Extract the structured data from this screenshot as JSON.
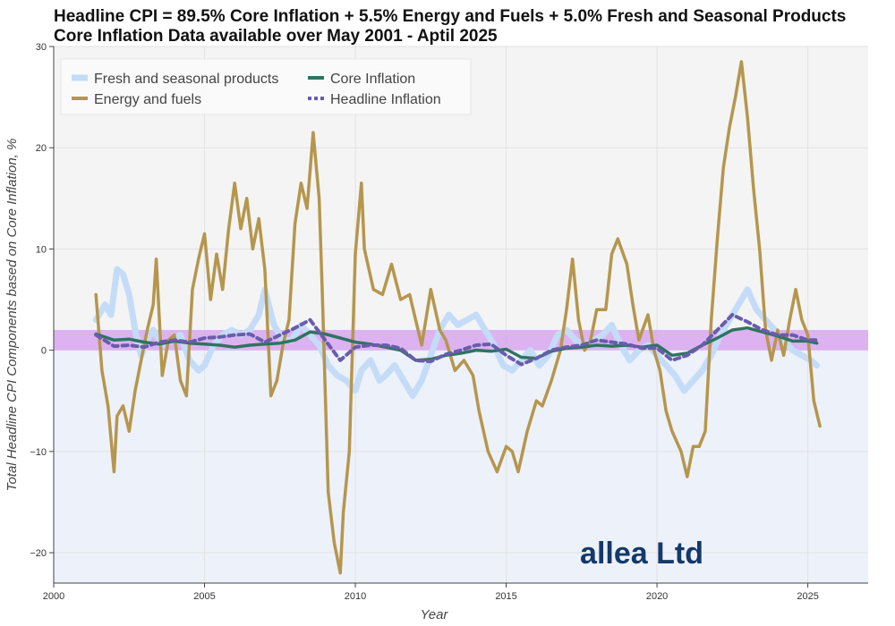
{
  "title_line1": "Headline CPI = 89.5% Core Inflation + 5.5% Energy and Fuels + 5.0% Fresh and Seasonal Products",
  "title_line2": "Core Inflation Data available over May 2001 - Aptil 2025",
  "watermark": "allea Ltd",
  "chart_data": {
    "type": "line",
    "xlabel": "Year",
    "ylabel": "Total Headline CPI Components based on Core Inflation, %",
    "xlim": [
      2000,
      2027
    ],
    "ylim": [
      -23,
      30
    ],
    "x_ticks": [
      2000,
      2005,
      2010,
      2015,
      2020,
      2025
    ],
    "y_ticks": [
      -20,
      -10,
      0,
      10,
      20,
      30
    ],
    "target_band": [
      0,
      2
    ],
    "colors": {
      "target_band": "#d8a6f0",
      "above_zero_bg": "#f4f4f4",
      "below_zero_bg": "#edf1fa"
    },
    "legend_position": "top-left",
    "series": [
      {
        "name": "Fresh and seasonal products",
        "color": "#c4dcf7",
        "style": "solid",
        "x": [
          2001.4,
          2001.7,
          2001.9,
          2002.1,
          2002.3,
          2002.5,
          2002.7,
          2002.9,
          2003.1,
          2003.3,
          2003.6,
          2003.9,
          2004.2,
          2004.5,
          2004.8,
          2005.0,
          2005.3,
          2005.6,
          2005.9,
          2006.2,
          2006.5,
          2006.8,
          2007.0,
          2007.3,
          2007.6,
          2007.9,
          2008.2,
          2008.5,
          2008.8,
          2009.1,
          2009.4,
          2009.7,
          2010.0,
          2010.2,
          2010.5,
          2010.8,
          2011.0,
          2011.3,
          2011.6,
          2011.9,
          2012.2,
          2012.5,
          2012.8,
          2013.1,
          2013.4,
          2013.7,
          2014.0,
          2014.3,
          2014.6,
          2014.9,
          2015.2,
          2015.5,
          2015.8,
          2016.1,
          2016.4,
          2016.7,
          2017.0,
          2017.3,
          2017.6,
          2017.9,
          2018.2,
          2018.5,
          2018.8,
          2019.1,
          2019.4,
          2019.7,
          2020.0,
          2020.3,
          2020.6,
          2020.9,
          2021.2,
          2021.5,
          2021.8,
          2022.1,
          2022.4,
          2022.7,
          2023.0,
          2023.3,
          2023.6,
          2023.9,
          2024.2,
          2024.5,
          2024.8,
          2025.1,
          2025.3
        ],
        "y": [
          3.0,
          4.5,
          3.5,
          8.0,
          7.5,
          5.5,
          2.0,
          -0.5,
          1.0,
          2.0,
          0.5,
          1.0,
          1.5,
          -1.0,
          -2.0,
          -1.5,
          0.5,
          1.5,
          2.0,
          1.5,
          2.0,
          3.5,
          6.0,
          2.5,
          1.0,
          1.0,
          2.5,
          1.5,
          0.5,
          -1.5,
          -2.5,
          -3.0,
          -4.0,
          -2.0,
          -1.0,
          -3.0,
          -2.5,
          -1.5,
          -3.0,
          -4.5,
          -3.0,
          -0.5,
          2.0,
          3.5,
          2.5,
          3.0,
          3.5,
          2.0,
          0.5,
          -1.5,
          -2.0,
          -1.0,
          0.0,
          -1.5,
          -0.5,
          1.5,
          2.0,
          1.0,
          0.5,
          1.0,
          1.5,
          2.5,
          0.5,
          -1.0,
          0.0,
          0.5,
          -0.5,
          -1.5,
          -2.5,
          -4.0,
          -3.0,
          -2.0,
          -0.5,
          1.5,
          3.0,
          4.5,
          6.0,
          4.0,
          3.0,
          2.0,
          1.0,
          0.0,
          -0.5,
          -1.0,
          -1.5
        ]
      },
      {
        "name": "Energy and fuels",
        "color": "#b5964d",
        "style": "solid",
        "x": [
          2001.4,
          2001.6,
          2001.8,
          2002.0,
          2002.1,
          2002.3,
          2002.5,
          2002.7,
          2002.9,
          2003.1,
          2003.3,
          2003.4,
          2003.6,
          2003.8,
          2004.0,
          2004.2,
          2004.4,
          2004.6,
          2004.8,
          2005.0,
          2005.2,
          2005.4,
          2005.6,
          2005.8,
          2006.0,
          2006.2,
          2006.4,
          2006.6,
          2006.8,
          2007.0,
          2007.2,
          2007.4,
          2007.6,
          2007.8,
          2008.0,
          2008.2,
          2008.4,
          2008.6,
          2008.8,
          2008.9,
          2009.1,
          2009.3,
          2009.5,
          2009.6,
          2009.8,
          2010.0,
          2010.2,
          2010.3,
          2010.6,
          2010.9,
          2011.2,
          2011.5,
          2011.8,
          2012.0,
          2012.2,
          2012.5,
          2012.8,
          2013.0,
          2013.3,
          2013.6,
          2013.9,
          2014.1,
          2014.4,
          2014.7,
          2015.0,
          2015.2,
          2015.4,
          2015.7,
          2016.0,
          2016.2,
          2016.5,
          2016.8,
          2017.0,
          2017.2,
          2017.4,
          2017.6,
          2017.8,
          2018.0,
          2018.3,
          2018.5,
          2018.7,
          2019.0,
          2019.2,
          2019.4,
          2019.7,
          2019.9,
          2020.1,
          2020.3,
          2020.5,
          2020.8,
          2021.0,
          2021.2,
          2021.4,
          2021.6,
          2021.8,
          2022.0,
          2022.2,
          2022.4,
          2022.6,
          2022.8,
          2023.0,
          2023.2,
          2023.4,
          2023.6,
          2023.8,
          2024.0,
          2024.2,
          2024.4,
          2024.6,
          2024.8,
          2025.0,
          2025.2,
          2025.4
        ],
        "y": [
          5.5,
          -2.0,
          -5.5,
          -12.0,
          -6.5,
          -5.5,
          -8.0,
          -4.0,
          -1.0,
          2.0,
          4.5,
          9.0,
          -2.5,
          1.0,
          1.5,
          -3.0,
          -4.5,
          6.0,
          9.0,
          11.5,
          5.0,
          9.5,
          6.0,
          12.0,
          16.5,
          12.0,
          15.0,
          10.0,
          13.0,
          8.0,
          -4.5,
          -3.0,
          0.5,
          3.0,
          12.5,
          16.5,
          14.0,
          21.5,
          15.0,
          6.0,
          -14.0,
          -19.0,
          -22.0,
          -16.0,
          -10.0,
          9.5,
          16.5,
          10.0,
          6.0,
          5.5,
          8.5,
          5.0,
          5.5,
          3.0,
          0.5,
          6.0,
          2.0,
          1.0,
          -2.0,
          -1.0,
          -2.5,
          -6.0,
          -10.0,
          -12.0,
          -9.5,
          -10.0,
          -12.0,
          -8.0,
          -5.0,
          -5.5,
          -3.0,
          0.0,
          4.0,
          9.0,
          3.0,
          0.0,
          1.0,
          4.0,
          4.0,
          9.5,
          11.0,
          8.5,
          4.5,
          1.0,
          3.5,
          0.0,
          -2.0,
          -6.0,
          -8.0,
          -10.0,
          -12.5,
          -9.5,
          -9.5,
          -8.0,
          3.0,
          11.0,
          18.0,
          22.0,
          25.0,
          28.5,
          23.0,
          16.0,
          10.0,
          2.0,
          -1.0,
          2.0,
          -0.5,
          3.0,
          6.0,
          3.0,
          1.5,
          -5.0,
          -7.5
        ]
      },
      {
        "name": "Core Inflation",
        "color": "#2f7361",
        "style": "solid",
        "x": [
          2001.4,
          2002.0,
          2002.5,
          2003.0,
          2003.5,
          2004.0,
          2004.5,
          2005.0,
          2005.5,
          2006.0,
          2006.5,
          2007.0,
          2007.5,
          2008.0,
          2008.5,
          2009.0,
          2009.5,
          2010.0,
          2010.5,
          2011.0,
          2011.5,
          2012.0,
          2012.5,
          2013.0,
          2013.5,
          2014.0,
          2014.5,
          2015.0,
          2015.5,
          2016.0,
          2016.5,
          2017.0,
          2017.5,
          2018.0,
          2018.5,
          2019.0,
          2019.5,
          2020.0,
          2020.5,
          2021.0,
          2021.5,
          2022.0,
          2022.5,
          2023.0,
          2023.5,
          2024.0,
          2024.5,
          2025.0,
          2025.3
        ],
        "y": [
          1.6,
          1.0,
          1.1,
          0.8,
          0.6,
          0.9,
          0.7,
          0.6,
          0.5,
          0.3,
          0.5,
          0.6,
          0.7,
          1.0,
          1.8,
          1.6,
          1.2,
          0.8,
          0.6,
          0.3,
          0.0,
          -1.0,
          -0.9,
          -0.5,
          -0.3,
          0.0,
          -0.1,
          0.1,
          -0.7,
          -0.8,
          -0.1,
          0.2,
          0.3,
          0.5,
          0.4,
          0.5,
          0.3,
          0.5,
          -0.5,
          -0.3,
          0.5,
          1.2,
          2.0,
          2.2,
          1.8,
          1.4,
          0.9,
          0.9,
          0.7
        ]
      },
      {
        "name": "Headline Inflation",
        "color": "#6a5cac",
        "style": "dashed",
        "x": [
          2001.4,
          2002.0,
          2002.5,
          2003.0,
          2003.5,
          2004.0,
          2004.5,
          2005.0,
          2005.5,
          2006.0,
          2006.5,
          2007.0,
          2007.5,
          2008.0,
          2008.5,
          2009.0,
          2009.5,
          2010.0,
          2010.5,
          2011.0,
          2011.5,
          2012.0,
          2012.5,
          2013.0,
          2013.5,
          2014.0,
          2014.5,
          2015.0,
          2015.5,
          2016.0,
          2016.5,
          2017.0,
          2017.5,
          2018.0,
          2018.5,
          2019.0,
          2019.5,
          2020.0,
          2020.5,
          2021.0,
          2021.5,
          2022.0,
          2022.5,
          2023.0,
          2023.5,
          2024.0,
          2024.5,
          2025.0,
          2025.3
        ],
        "y": [
          1.5,
          0.4,
          0.5,
          0.3,
          0.8,
          1.0,
          0.8,
          1.2,
          1.3,
          1.5,
          1.6,
          0.8,
          1.5,
          2.2,
          3.0,
          1.0,
          -1.0,
          0.3,
          0.5,
          0.5,
          0.2,
          -1.0,
          -1.1,
          -0.4,
          0.0,
          0.5,
          0.6,
          -0.5,
          -1.4,
          -0.8,
          0.0,
          0.3,
          0.5,
          1.0,
          0.8,
          0.6,
          0.2,
          0.2,
          -1.0,
          -0.5,
          0.5,
          2.0,
          3.5,
          2.8,
          2.0,
          1.5,
          1.5,
          1.0,
          1.0
        ]
      }
    ]
  }
}
